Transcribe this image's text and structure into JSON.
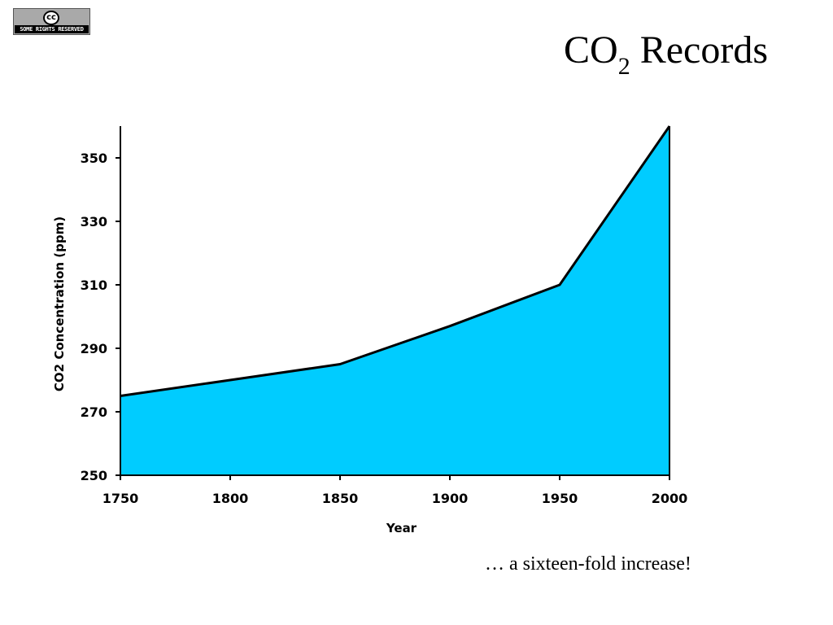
{
  "badge": {
    "symbol": "cc",
    "text": "SOME RIGHTS RESERVED"
  },
  "title": {
    "main": "CO",
    "subscript": "2",
    "rest": "Records"
  },
  "caption": "… a sixteen-fold increase!",
  "chart_data": {
    "type": "area",
    "x": [
      1750,
      1800,
      1850,
      1900,
      1950,
      2000
    ],
    "values": [
      275,
      280,
      285,
      297,
      310,
      360
    ],
    "xlim": [
      1750,
      2000
    ],
    "ylim": [
      250,
      360
    ],
    "x_ticks": [
      1750,
      1800,
      1850,
      1900,
      1950,
      2000
    ],
    "y_ticks": [
      250,
      270,
      290,
      310,
      330,
      350
    ],
    "xlabel": "Year",
    "ylabel": "CO2 Concentration (ppm)",
    "fill_color": "#00ccff",
    "line_color": "#000000",
    "grid": false
  }
}
